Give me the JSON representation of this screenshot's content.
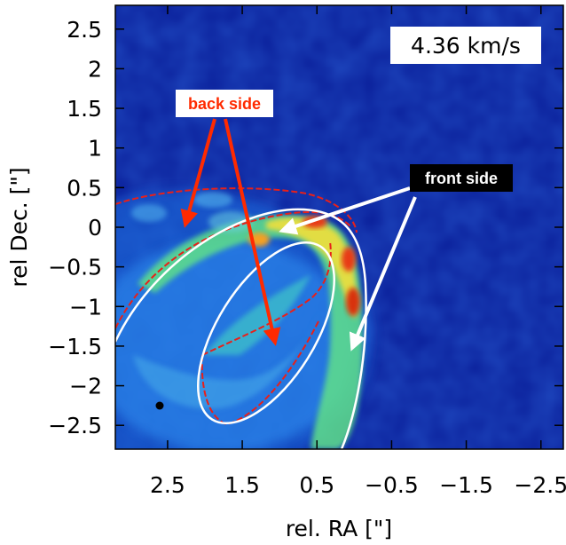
{
  "chart_data": {
    "type": "heatmap",
    "title": "",
    "xlabel": "rel. RA [\"]",
    "ylabel": "rel Dec. [\"]",
    "xlim": [
      3.2,
      -2.8
    ],
    "ylim": [
      -2.8,
      2.8
    ],
    "x_axis_reversed": true,
    "xticks": [
      2.5,
      1.5,
      0.5,
      -0.5,
      -1.5,
      -2.5
    ],
    "xtick_labels": [
      "2.5",
      "1.5",
      "0.5",
      "−0.5",
      "−1.5",
      "−2.5"
    ],
    "yticks": [
      2.5,
      2,
      1.5,
      1,
      0.5,
      0,
      -0.5,
      -1,
      -1.5,
      -2,
      -2.5
    ],
    "ytick_labels": [
      "2.5",
      "2",
      "1.5",
      "1",
      "0.5",
      "0",
      "−0.5",
      "−1",
      "−1.5",
      "−2",
      "−2.5"
    ],
    "velocity_label": "4.36 km/s",
    "colormap": "jet",
    "background_color": "#0a1f9a",
    "annotations": [
      {
        "text": "back side",
        "color": "#ff2a00",
        "box": "#ffffff",
        "xy": [
          2.0,
          0.35
        ],
        "arrows_to": [
          [
            1.8,
            -0.05
          ],
          [
            0.6,
            -1.5
          ]
        ]
      },
      {
        "text": "front side",
        "color": "#ffffff",
        "box": "#000000",
        "xy": [
          -0.8,
          0.5
        ],
        "arrows_to": [
          [
            0.2,
            -0.05
          ],
          [
            -0.3,
            -1.55
          ]
        ]
      }
    ],
    "beam_marker": [
      2.5,
      -2.2
    ]
  }
}
